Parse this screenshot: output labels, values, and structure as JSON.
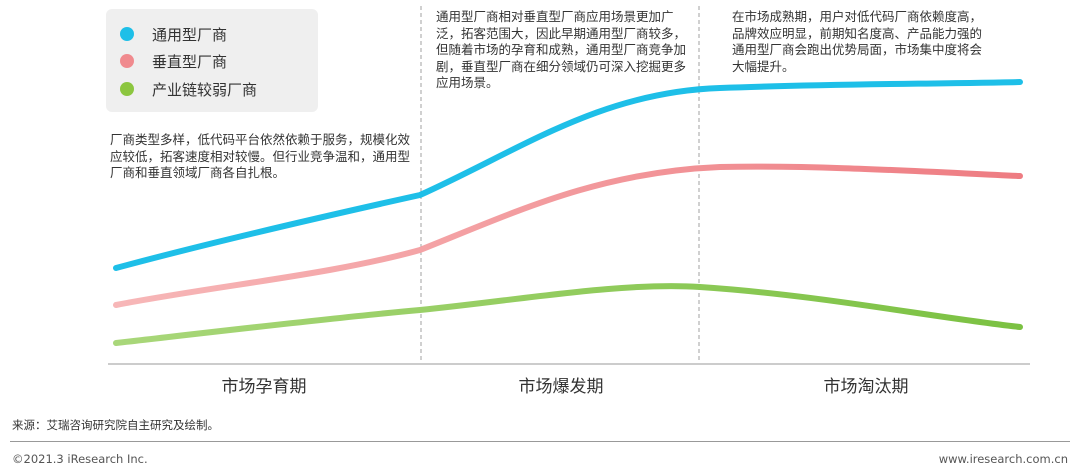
{
  "legend": {
    "items": [
      {
        "label": "通用型厂商",
        "color": "#1ebfe8"
      },
      {
        "label": "垂直型厂商",
        "color": "#f08a8e"
      },
      {
        "label": "产业链较弱厂商",
        "color": "#8cc63f"
      }
    ]
  },
  "notes": {
    "stage1": "厂商类型多样，低代码平台依然依赖于服务，规模化效应较低，拓客速度相对较慢。但行业竞争温和，通用型厂商和垂直领域厂商各自扎根。",
    "stage2": "通用型厂商相对垂直型厂商应用场景更加广泛，拓客范围大，因此早期通用型厂商较多，但随着市场的孕育和成熟，通用型厂商竞争加剧，垂直型厂商在细分领域仍可深入挖掘更多应用场景。",
    "stage3": "在市场成熟期，用户对低代码厂商依赖度高，品牌效应明显，前期知名度高、产品能力强的通用型厂商会跑出优势局面，市场集中度将会大幅提升。"
  },
  "phases": [
    "市场孕育期",
    "市场爆发期",
    "市场淘汰期"
  ],
  "footer": {
    "source": "来源：艾瑞咨询研究院自主研究及绘制。",
    "copyright": "©2021.3 iResearch Inc.",
    "site": "www.iresearch.com.cn"
  },
  "colors": {
    "general_start": "#1ebfe8",
    "general_end": "#1ebfe8",
    "vertical_start": "#f7b7b8",
    "vertical_end": "#ee7c82",
    "weak_start": "#a9d77a",
    "weak_end": "#7bc142",
    "divider": "#a0a0a0",
    "axis": "#999999"
  }
}
